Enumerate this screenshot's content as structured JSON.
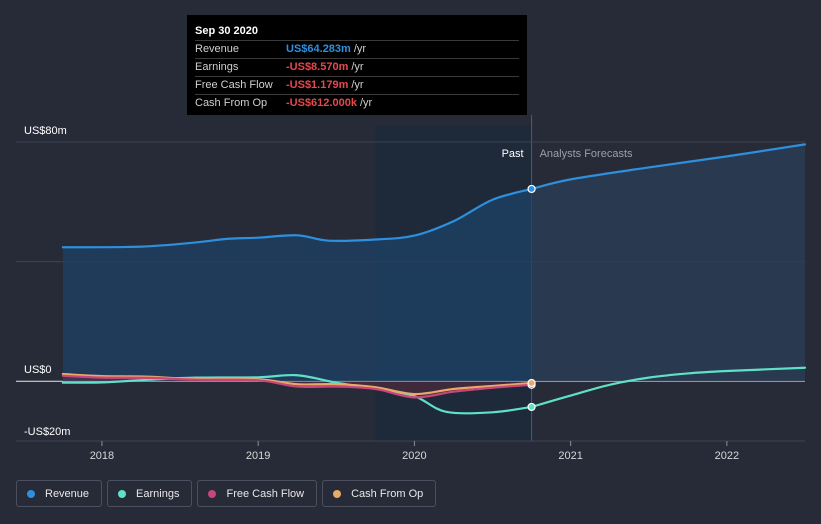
{
  "tooltip": {
    "date": "Sep 30 2020",
    "rows": [
      {
        "label": "Revenue",
        "value": "US$64.283m",
        "unit": "/yr",
        "color": "#2f8fe0"
      },
      {
        "label": "Earnings",
        "value": "-US$8.570m",
        "unit": "/yr",
        "color": "#e5484d"
      },
      {
        "label": "Free Cash Flow",
        "value": "-US$1.179m",
        "unit": "/yr",
        "color": "#e5484d"
      },
      {
        "label": "Cash From Op",
        "value": "-US$612.000k",
        "unit": "/yr",
        "color": "#e5484d"
      }
    ]
  },
  "legend": [
    {
      "label": "Revenue",
      "color": "#2e8fdd"
    },
    {
      "label": "Earnings",
      "color": "#5fe0c9"
    },
    {
      "label": "Free Cash Flow",
      "color": "#c9457a"
    },
    {
      "label": "Cash From Op",
      "color": "#e8a96a"
    }
  ],
  "chart_data": {
    "type": "line",
    "y_tick_labels": [
      "US$80m",
      "US$0",
      "-US$20m"
    ],
    "x_tick_labels": [
      "2018",
      "2019",
      "2020",
      "2021",
      "2022"
    ],
    "past_label": "Past",
    "forecast_label": "Analysts Forecasts",
    "ylim": [
      -20,
      80
    ],
    "xlim": [
      2017.45,
      2022.5
    ],
    "series": [
      {
        "name": "Revenue",
        "color": "#2e8fdd",
        "points": [
          [
            2017.75,
            44.8
          ],
          [
            2018.25,
            45
          ],
          [
            2018.6,
            46.4
          ],
          [
            2018.8,
            47.6
          ],
          [
            2019.0,
            48.0
          ],
          [
            2019.25,
            48.8
          ],
          [
            2019.45,
            47.0
          ],
          [
            2019.75,
            47.4
          ],
          [
            2020.0,
            48.7
          ],
          [
            2020.25,
            53.5
          ],
          [
            2020.5,
            60.7
          ],
          [
            2020.75,
            64.3
          ]
        ]
      },
      {
        "name": "Revenue forecast",
        "color": "#2e8fdd",
        "points": [
          [
            2020.75,
            64.3
          ],
          [
            2021.0,
            67.5
          ],
          [
            2021.5,
            71.5
          ],
          [
            2022.0,
            75.2
          ],
          [
            2022.5,
            79.2
          ]
        ]
      },
      {
        "name": "Earnings",
        "color": "#5fe0c9",
        "points": [
          [
            2017.75,
            -0.5
          ],
          [
            2018.0,
            -0.4
          ],
          [
            2018.3,
            0.5
          ],
          [
            2018.6,
            1.2
          ],
          [
            2019.0,
            1.3
          ],
          [
            2019.25,
            2.0
          ],
          [
            2019.5,
            -0.5
          ],
          [
            2019.75,
            -2.5
          ],
          [
            2020.0,
            -5.0
          ],
          [
            2020.2,
            -10.2
          ],
          [
            2020.5,
            -10.4
          ],
          [
            2020.75,
            -8.6
          ]
        ]
      },
      {
        "name": "Earnings forecast",
        "color": "#5fe0c9",
        "points": [
          [
            2020.75,
            -8.6
          ],
          [
            2021.0,
            -4.8
          ],
          [
            2021.25,
            -1.2
          ],
          [
            2021.5,
            1.2
          ],
          [
            2021.75,
            2.6
          ],
          [
            2022.0,
            3.4
          ],
          [
            2022.5,
            4.5
          ]
        ]
      },
      {
        "name": "Free Cash Flow",
        "color": "#c9457a",
        "points": [
          [
            2017.75,
            1.8
          ],
          [
            2018.0,
            1.2
          ],
          [
            2018.3,
            1.1
          ],
          [
            2018.6,
            0.5
          ],
          [
            2019.0,
            0.3
          ],
          [
            2019.25,
            -1.8
          ],
          [
            2019.5,
            -1.8
          ],
          [
            2019.75,
            -2.6
          ],
          [
            2020.0,
            -5.4
          ],
          [
            2020.25,
            -3.5
          ],
          [
            2020.5,
            -2.2
          ],
          [
            2020.75,
            -1.2
          ]
        ]
      },
      {
        "name": "Cash From Op",
        "color": "#e8a96a",
        "points": [
          [
            2017.75,
            2.4
          ],
          [
            2018.0,
            1.7
          ],
          [
            2018.3,
            1.5
          ],
          [
            2018.6,
            0.7
          ],
          [
            2019.0,
            0.6
          ],
          [
            2019.25,
            -1.0
          ],
          [
            2019.5,
            -1.0
          ],
          [
            2019.75,
            -2.0
          ],
          [
            2020.0,
            -4.3
          ],
          [
            2020.25,
            -2.6
          ],
          [
            2020.5,
            -1.6
          ],
          [
            2020.75,
            -0.6
          ]
        ]
      }
    ],
    "past_end_x": 2020.75,
    "highlight_start_x": 2019.75
  }
}
